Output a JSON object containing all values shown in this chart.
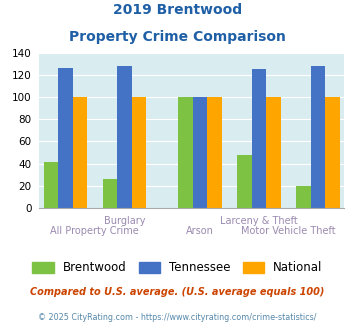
{
  "title_line1": "2019 Brentwood",
  "title_line2": "Property Crime Comparison",
  "brentwood": [
    41,
    26,
    100,
    48,
    20
  ],
  "tennessee": [
    126,
    128,
    100,
    125,
    128
  ],
  "national": [
    100,
    100,
    100,
    100,
    100
  ],
  "bar_color_brentwood": "#7dc242",
  "bar_color_tennessee": "#4472c4",
  "bar_color_national": "#ffa500",
  "ylim": [
    0,
    140
  ],
  "yticks": [
    0,
    20,
    40,
    60,
    80,
    100,
    120,
    140
  ],
  "plot_bg_color": "#d9ecf0",
  "fig_bg_color": "#ffffff",
  "title_color": "#1f5fa6",
  "xlabel_color": "#9b8ab0",
  "legend_labels": [
    "Brentwood",
    "Tennessee",
    "National"
  ],
  "footnote1": "Compared to U.S. average. (U.S. average equals 100)",
  "footnote2": "© 2025 CityRating.com - https://www.cityrating.com/crime-statistics/",
  "footnote1_color": "#cc4400",
  "footnote2_color": "#5588aa",
  "bar_width": 0.22,
  "x_positions": [
    0.3,
    1.2,
    2.35,
    3.25,
    4.15
  ],
  "upper_labels": [
    [
      "Burglary",
      1.2
    ],
    [
      "Larceny & Theft",
      3.25
    ]
  ],
  "lower_labels": [
    [
      "All Property Crime",
      0.75
    ],
    [
      "Arson",
      2.35
    ],
    [
      "Motor Vehicle Theft",
      3.7
    ]
  ]
}
